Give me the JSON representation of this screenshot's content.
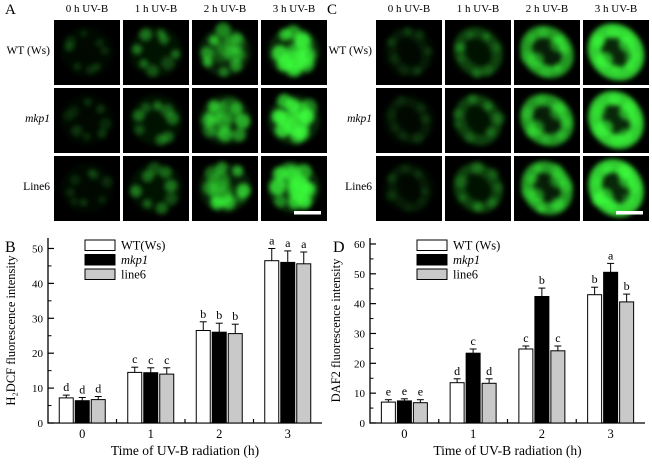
{
  "panels": {
    "A": {
      "label": "A",
      "col_headers": [
        "0 h UV-B",
        "1 h UV-B",
        "2 h UV-B",
        "3 h UV-B"
      ],
      "rows": [
        {
          "label": "WT (Ws)",
          "italic": false
        },
        {
          "label": "mkp1",
          "italic": true
        },
        {
          "label": "Line6",
          "italic": false
        }
      ],
      "pattern": "spots",
      "intensity_by_col": [
        0,
        1,
        2,
        3
      ],
      "scale_bar": true
    },
    "C": {
      "label": "C",
      "col_headers": [
        "0 h UV-B",
        "1 h UV-B",
        "2 h UV-B",
        "3 h UV-B"
      ],
      "rows": [
        {
          "label": "WT (Ws)",
          "italic": false
        },
        {
          "label": "mkp1",
          "italic": true
        },
        {
          "label": "Line6",
          "italic": false
        }
      ],
      "pattern": "ring",
      "intensity_by_col": [
        0,
        1,
        2,
        3
      ],
      "scale_bar": true
    }
  },
  "chart_data": [
    {
      "panel_label": "B",
      "type": "bar",
      "categories": [
        "0",
        "1",
        "2",
        "3"
      ],
      "series": [
        {
          "name": "WT(Ws)",
          "italic": false,
          "fill": "#ffffff",
          "values": [
            7.2,
            14.5,
            26.5,
            46.5
          ],
          "errors": [
            0.8,
            1.5,
            2.5,
            3.5
          ],
          "letters": [
            "d",
            "c",
            "b",
            "a"
          ]
        },
        {
          "name": "mkp1",
          "italic": true,
          "fill": "#000000",
          "values": [
            6.4,
            14.4,
            26.0,
            46.0
          ],
          "errors": [
            0.9,
            1.4,
            2.6,
            3.3
          ],
          "letters": [
            "d",
            "c",
            "b",
            "a"
          ]
        },
        {
          "name": "line6",
          "italic": false,
          "fill": "#c9c9c9",
          "values": [
            6.7,
            14.0,
            25.6,
            45.6
          ],
          "errors": [
            0.9,
            1.8,
            2.7,
            3.4
          ],
          "letters": [
            "d",
            "c",
            "b",
            "a"
          ]
        }
      ],
      "xlabel": "Time of UV-B radiation (h)",
      "ylabel": "H₂DCF fluorescence intensity",
      "ylim": [
        0,
        50
      ],
      "yticks": [
        0,
        10,
        20,
        30,
        40,
        50
      ],
      "ytick_step": 10,
      "yminor_step": 5,
      "legend_position": "top-left",
      "grid": false
    },
    {
      "panel_label": "D",
      "type": "bar",
      "categories": [
        "0",
        "1",
        "2",
        "3"
      ],
      "series": [
        {
          "name": "WT (Ws)",
          "italic": false,
          "fill": "#ffffff",
          "values": [
            7.0,
            13.5,
            24.8,
            43.0
          ],
          "errors": [
            0.8,
            1.3,
            1.0,
            2.5
          ],
          "letters": [
            "e",
            "d",
            "c",
            "b"
          ]
        },
        {
          "name": "mkp1",
          "italic": true,
          "fill": "#000000",
          "values": [
            7.4,
            23.4,
            42.4,
            50.5
          ],
          "errors": [
            0.7,
            1.4,
            2.8,
            3.0
          ],
          "letters": [
            "e",
            "c",
            "b",
            "a"
          ]
        },
        {
          "name": "line6",
          "italic": false,
          "fill": "#c9c9c9",
          "values": [
            6.8,
            13.3,
            24.2,
            40.6
          ],
          "errors": [
            1.0,
            1.5,
            1.6,
            2.6
          ],
          "letters": [
            "e",
            "d",
            "c",
            "b"
          ]
        }
      ],
      "xlabel": "Time of UV-B radiation (h)",
      "ylabel": "DAF2 fluorescence intensity",
      "ylim": [
        0,
        60
      ],
      "yticks": [
        0,
        10,
        20,
        30,
        40,
        50,
        60
      ],
      "ytick_step": 10,
      "yminor_step": 5,
      "legend_position": "top-left",
      "grid": false
    }
  ],
  "colors": {
    "fluorescence_green": "#3cff3c",
    "tile_background": "#000000",
    "bar_gray": "#c9c9c9",
    "scale_bar": "#ffffff",
    "axis": "#000000"
  }
}
